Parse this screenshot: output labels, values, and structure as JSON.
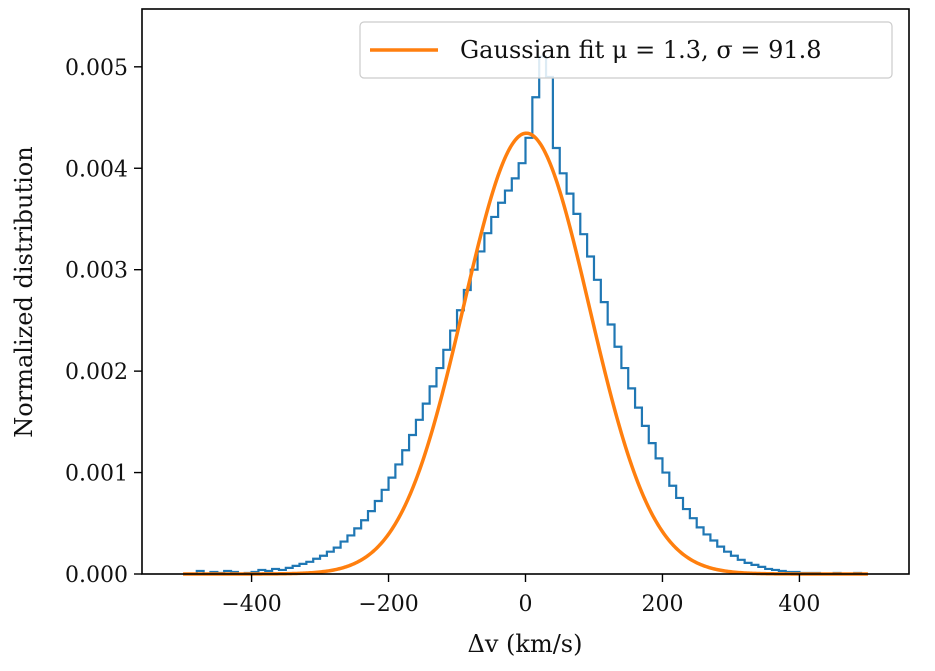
{
  "chart_data": {
    "type": "histogram_with_fit",
    "title": "",
    "xlabel": "Δv (km/s)",
    "ylabel": "Normalized distribution",
    "xlim": [
      -560,
      560
    ],
    "ylim": [
      0,
      0.00557
    ],
    "xticks": [
      -400,
      -200,
      0,
      200,
      400
    ],
    "xtick_labels": [
      "−400",
      "−200",
      "0",
      "200",
      "400"
    ],
    "yticks": [
      0,
      0.001,
      0.002,
      0.003,
      0.004,
      0.005
    ],
    "ytick_labels": [
      "0.000",
      "0.001",
      "0.002",
      "0.003",
      "0.004",
      "0.005"
    ],
    "grid": false,
    "legend_position": "top-right",
    "histogram": {
      "color": "#1f77b4",
      "bin_width": 10,
      "bin_edges_start": -500,
      "values": [
        0.0,
        0.0,
        3e-05,
        0.0,
        2e-05,
        1e-05,
        3e-05,
        2e-05,
        0.0,
        1e-05,
        2e-05,
        4e-05,
        3e-05,
        5e-05,
        4e-05,
        6e-05,
        8e-05,
        0.0001,
        0.00012,
        0.00015,
        0.00018,
        0.00022,
        0.00026,
        0.00032,
        0.00038,
        0.00045,
        0.00053,
        0.00062,
        0.00072,
        0.00083,
        0.00095,
        0.00108,
        0.00122,
        0.00137,
        0.00152,
        0.00168,
        0.00185,
        0.00203,
        0.00221,
        0.0024,
        0.0026,
        0.0028,
        0.003,
        0.00318,
        0.00336,
        0.00352,
        0.00366,
        0.00378,
        0.0039,
        0.00405,
        0.0043,
        0.0047,
        0.0051,
        0.0049,
        0.0042,
        0.00395,
        0.00375,
        0.00355,
        0.00335,
        0.00313,
        0.0029,
        0.00268,
        0.00246,
        0.00224,
        0.00203,
        0.00183,
        0.00164,
        0.00146,
        0.00129,
        0.00114,
        0.001,
        0.00087,
        0.00075,
        0.00064,
        0.00055,
        0.00046,
        0.00039,
        0.00033,
        0.00027,
        0.00022,
        0.00018,
        0.00014,
        0.00011,
        9e-05,
        7e-05,
        5e-05,
        4e-05,
        3e-05,
        2e-05,
        2e-05,
        1e-05,
        1e-05,
        1e-05,
        0.0,
        0.0,
        1e-05,
        0.0,
        0.0,
        1e-05,
        0.0
      ]
    },
    "series": [
      {
        "name": "Gaussian fit μ = 1.3, σ = 91.8",
        "type": "gaussian",
        "mu": 1.3,
        "sigma": 91.8,
        "color": "#ff7f0e",
        "x_range": [
          -500,
          500
        ]
      }
    ],
    "legend": {
      "label": "Gaussian fit μ = 1.3, σ = 91.8"
    }
  }
}
